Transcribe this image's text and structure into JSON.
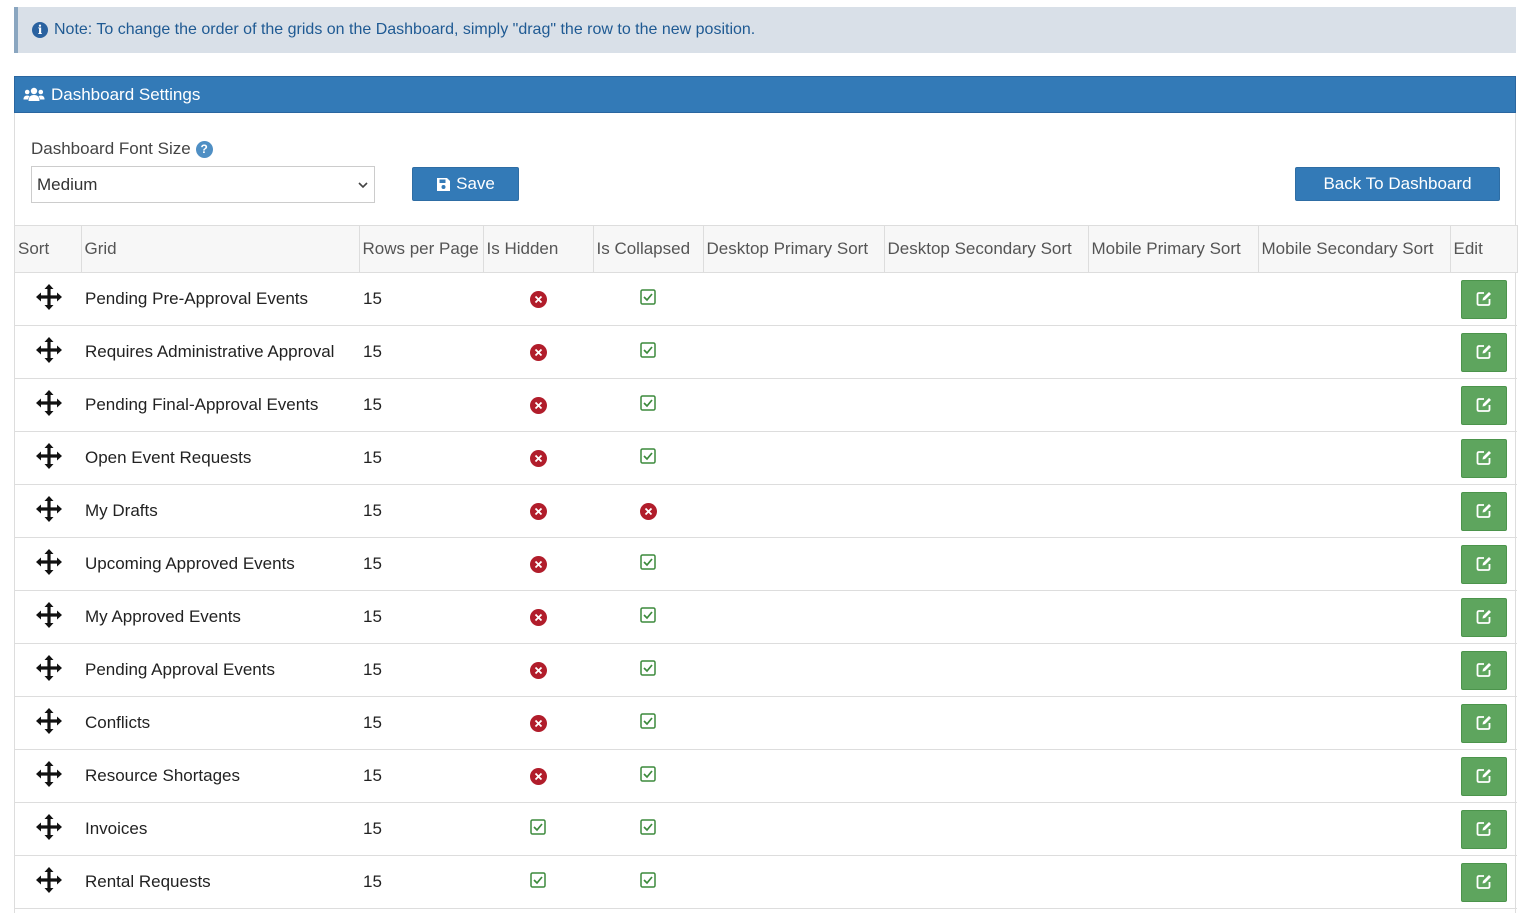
{
  "note": {
    "icon": "info-circle-icon",
    "text": "Note: To change the order of the grids on the Dashboard, simply \"drag\" the row to the new position."
  },
  "panel": {
    "icon": "users-icon",
    "title": "Dashboard Settings"
  },
  "settings": {
    "font_size_label": "Dashboard Font Size",
    "font_size_value": "Medium",
    "save_label": "Save",
    "back_label": "Back To Dashboard"
  },
  "table": {
    "columns": [
      "Sort",
      "Grid",
      "Rows per Page",
      "Is Hidden",
      "Is Collapsed",
      "Desktop Primary Sort",
      "Desktop Secondary Sort",
      "Mobile Primary Sort",
      "Mobile Secondary Sort",
      "Edit"
    ],
    "rows": [
      {
        "grid": "Pending Pre-Approval Events",
        "rows": "15",
        "hidden": false,
        "collapsed": true
      },
      {
        "grid": "Requires Administrative Approval",
        "rows": "15",
        "hidden": false,
        "collapsed": true
      },
      {
        "grid": "Pending Final-Approval Events",
        "rows": "15",
        "hidden": false,
        "collapsed": true
      },
      {
        "grid": "Open Event Requests",
        "rows": "15",
        "hidden": false,
        "collapsed": true
      },
      {
        "grid": "My Drafts",
        "rows": "15",
        "hidden": false,
        "collapsed": false
      },
      {
        "grid": "Upcoming Approved Events",
        "rows": "15",
        "hidden": false,
        "collapsed": true
      },
      {
        "grid": "My Approved Events",
        "rows": "15",
        "hidden": false,
        "collapsed": true
      },
      {
        "grid": "Pending Approval Events",
        "rows": "15",
        "hidden": false,
        "collapsed": true
      },
      {
        "grid": "Conflicts",
        "rows": "15",
        "hidden": false,
        "collapsed": true
      },
      {
        "grid": "Resource Shortages",
        "rows": "15",
        "hidden": false,
        "collapsed": true
      },
      {
        "grid": "Invoices",
        "rows": "15",
        "hidden": true,
        "collapsed": true
      },
      {
        "grid": "Rental Requests",
        "rows": "15",
        "hidden": true,
        "collapsed": true
      }
    ]
  },
  "colors": {
    "primary": "#337ab7",
    "edit_green": "#5ea55e",
    "false_red": "#b11d2b",
    "true_green": "#3c8a3c"
  }
}
